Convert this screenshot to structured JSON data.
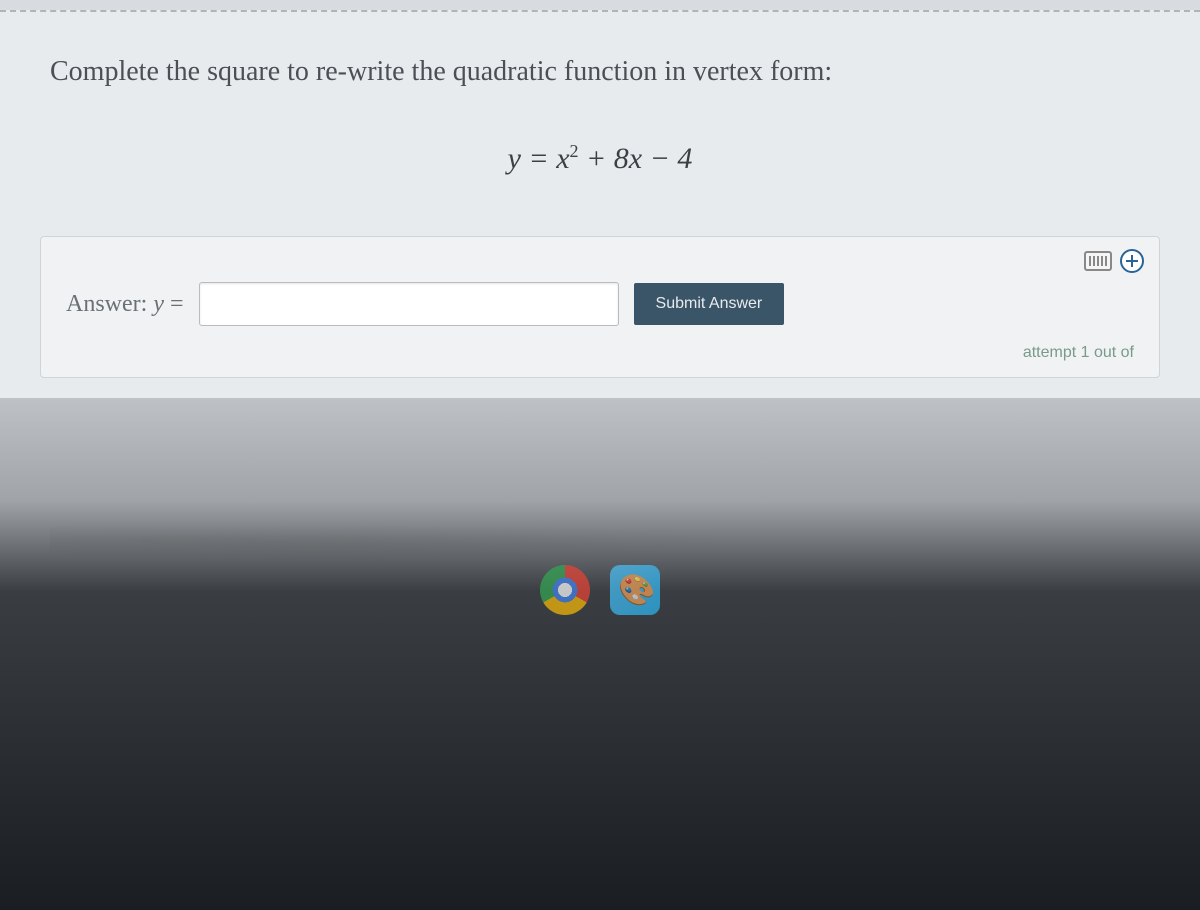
{
  "question": {
    "prompt": "Complete the square to re-write the quadratic function in vertex form:",
    "equation_lhs": "y",
    "equation_rhs_base": "x",
    "equation_rhs_exp": "2",
    "equation_rhs_linear": " + 8x − 4"
  },
  "answer": {
    "label_prefix": "Answer: ",
    "label_var": "y",
    "label_equals": " =",
    "input_value": "",
    "submit_label": "Submit Answer",
    "attempt_text": "attempt 1 out of"
  },
  "colors": {
    "panel_bg": "#f0f2f4",
    "content_bg": "#e8ebed",
    "button_bg": "#3a5568",
    "text_primary": "#4a5055",
    "attempt_color": "#7a9a8a"
  }
}
